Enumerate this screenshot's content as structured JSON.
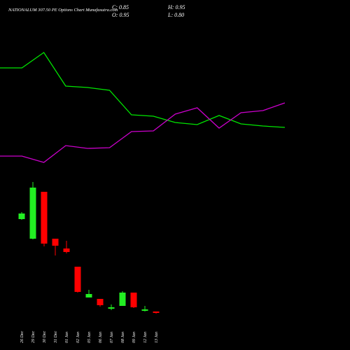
{
  "chart_data": [
    {
      "type": "candlestick",
      "title": "NATIONALUM 307.50 PE Options Chart Munafasutra.com",
      "annotations": [
        "C: 0.85",
        "H: 0.95",
        "O: 0.95",
        "L: 0.80"
      ],
      "categories": [
        "26 Dec",
        "29 Dec",
        "30 Dec",
        "31 Dec",
        "01 Jan",
        "02 Jan",
        "05 Jan",
        "06 Jan",
        "07 Jan",
        "08 Jan",
        "09 Jan",
        "12 Jan",
        "13 Jan"
      ],
      "open": [
        7.55,
        6.15,
        9.5,
        6.15,
        5.45,
        4.15,
        1.95,
        1.85,
        1.15,
        1.35,
        2.3,
        1.0,
        0.95
      ],
      "high": [
        8.05,
        10.2,
        9.5,
        6.15,
        6.0,
        4.15,
        2.5,
        1.85,
        1.45,
        2.4,
        2.3,
        1.35,
        0.95
      ],
      "low": [
        7.5,
        6.1,
        5.6,
        4.95,
        5.1,
        2.3,
        1.95,
        1.3,
        1.05,
        1.35,
        1.2,
        0.95,
        0.8
      ],
      "close": [
        7.95,
        9.8,
        5.8,
        5.65,
        5.2,
        2.35,
        2.2,
        1.4,
        1.25,
        2.3,
        1.25,
        1.1,
        0.85
      ],
      "up_color": "#22ee22",
      "down_color": "#ff0000",
      "ylim": [
        0,
        12
      ]
    },
    {
      "type": "line",
      "categories": [
        null,
        null,
        null,
        null,
        null,
        null,
        null,
        null,
        null,
        null,
        null,
        null,
        null,
        null
      ],
      "series": [
        {
          "color": "#00e600",
          "values": [
            203,
            203,
            225,
            177,
            175,
            171,
            136,
            134,
            125,
            122,
            135,
            123,
            120,
            118
          ]
        },
        {
          "color": "#cc00cc",
          "values": [
            77,
            77,
            68,
            92,
            88,
            89,
            112,
            113,
            137,
            146,
            117,
            139,
            142,
            153
          ]
        }
      ],
      "ylim": [
        0,
        300
      ]
    }
  ]
}
